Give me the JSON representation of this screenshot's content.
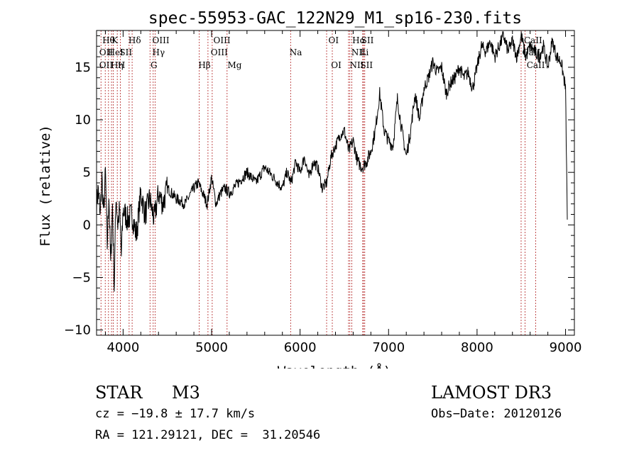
{
  "chart_data": {
    "type": "line",
    "title": "spec-55953-GAC_122N29_M1_sp16-230.fits",
    "xlabel": "Wavelength (Å)",
    "ylabel": "Flux (relative)",
    "xlim": [
      3700,
      9100
    ],
    "ylim": [
      -10.5,
      18.5
    ],
    "xticks": [
      4000,
      5000,
      6000,
      7000,
      8000,
      9000
    ],
    "yticks": [
      -10,
      -5,
      0,
      5,
      10,
      15
    ],
    "grid": false,
    "line_color": "#000000",
    "line_marker_color": "#b22222",
    "series": [
      {
        "name": "flux",
        "x": [
          3700,
          3720,
          3740,
          3760,
          3780,
          3800,
          3820,
          3840,
          3860,
          3880,
          3900,
          3920,
          3940,
          3960,
          3980,
          4000,
          4050,
          4100,
          4150,
          4200,
          4250,
          4300,
          4350,
          4400,
          4450,
          4500,
          4600,
          4700,
          4800,
          4850,
          4900,
          4950,
          5000,
          5050,
          5100,
          5150,
          5200,
          5300,
          5400,
          5500,
          5600,
          5700,
          5800,
          5850,
          5900,
          5950,
          6000,
          6050,
          6100,
          6150,
          6200,
          6250,
          6300,
          6350,
          6400,
          6450,
          6500,
          6550,
          6600,
          6650,
          6700,
          6750,
          6800,
          6850,
          6900,
          6950,
          7000,
          7050,
          7100,
          7150,
          7200,
          7250,
          7300,
          7350,
          7400,
          7450,
          7500,
          7550,
          7600,
          7650,
          7700,
          7750,
          7800,
          7850,
          7900,
          7950,
          8000,
          8050,
          8100,
          8150,
          8200,
          8250,
          8300,
          8350,
          8400,
          8450,
          8500,
          8550,
          8600,
          8650,
          8700,
          8750,
          8800,
          8850,
          8900,
          8950,
          9000,
          9020
        ],
        "y": [
          2,
          3.5,
          0.5,
          4.5,
          1,
          5,
          -2,
          3,
          -4,
          2,
          -6,
          3,
          0,
          1.5,
          -3,
          1.5,
          0.5,
          1,
          -1,
          3,
          1,
          2.5,
          0.5,
          3,
          2,
          3.5,
          2.5,
          2,
          3.5,
          4,
          3,
          2,
          4.5,
          2,
          3,
          3.5,
          3,
          4,
          5,
          4,
          5.5,
          4.5,
          3.5,
          5,
          4,
          6,
          5,
          6.5,
          4.5,
          6,
          5.5,
          3.5,
          4,
          6.5,
          7.5,
          8.5,
          9,
          7,
          8,
          6,
          5.5,
          6,
          7,
          9,
          12.5,
          9,
          8,
          7.5,
          12,
          9,
          6.5,
          9,
          12.5,
          10,
          13,
          14,
          15.5,
          14.5,
          15,
          12.5,
          13.5,
          14,
          15,
          14,
          14.5,
          13,
          15,
          17,
          16.5,
          17.5,
          16,
          17,
          18,
          16.5,
          17.5,
          16,
          18,
          16,
          17,
          16.5,
          16,
          17,
          15,
          17.5,
          16,
          15.5,
          13,
          0.5
        ]
      }
    ],
    "lines_top_row1": [
      "Hθ",
      "K",
      "Hδ",
      "OIII",
      "OIII",
      "OI",
      "Hα",
      "SII",
      "CaII"
    ],
    "lines_top_row2": [
      "OII",
      "HeI",
      "SII",
      "Hγ",
      "OIII",
      "Na",
      "NII",
      "Li",
      "CaII"
    ],
    "lines_top_row3": [
      "OII",
      "Hη",
      "H",
      "G",
      "Hβ",
      "Mg",
      "OI",
      "NII",
      "SII",
      "CaII"
    ]
  },
  "info": {
    "object_type": "STAR",
    "subclass": "M3",
    "survey": "LAMOST DR3",
    "cz": "cz = −19.8 ± 17.7 km/s",
    "obs_date": "Obs−Date: 20120126",
    "coords": "RA = 121.29121, DEC =  31.20546"
  }
}
